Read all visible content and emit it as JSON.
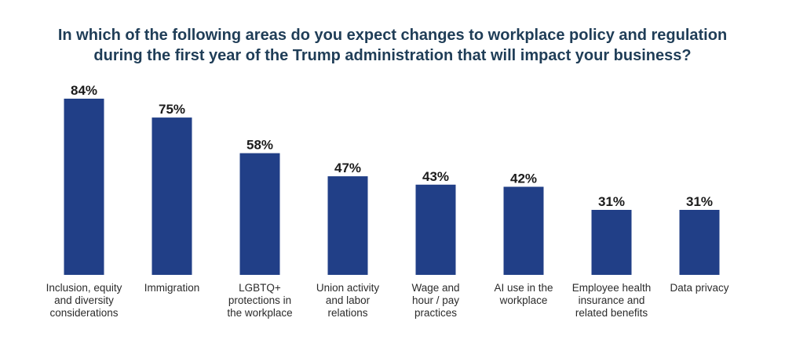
{
  "chart_data": {
    "type": "bar",
    "title": [
      "In which of the following areas do you expect changes to workplace policy and regulation",
      "during the first year of the Trump administration that will impact your business?"
    ],
    "categories": [
      [
        "Inclusion, equity",
        "and diversity",
        "considerations"
      ],
      [
        "Immigration"
      ],
      [
        "LGBTQ+",
        "protections in",
        "the workplace"
      ],
      [
        "Union activity",
        "and labor",
        "relations"
      ],
      [
        "Wage and",
        "hour / pay",
        "practices"
      ],
      [
        "AI use in the",
        "workplace"
      ],
      [
        "Employee health",
        "insurance and",
        "related benefits"
      ],
      [
        "Data privacy"
      ]
    ],
    "values": [
      84,
      75,
      58,
      47,
      43,
      42,
      31,
      31
    ],
    "value_labels": [
      "84%",
      "75%",
      "58%",
      "47%",
      "43%",
      "42%",
      "31%",
      "31%"
    ],
    "ylim": [
      0,
      100
    ],
    "grid": false,
    "legend": "none",
    "colors": {
      "bar": "#213f87",
      "title": "#1f3d57"
    }
  }
}
